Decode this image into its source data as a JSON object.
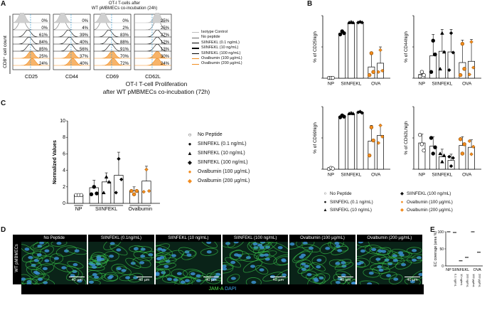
{
  "panels": {
    "A": "A",
    "B": "B",
    "C": "C",
    "D": "D",
    "E": "E"
  },
  "panel_a": {
    "title_line1": "OT-I T-cells after",
    "title_line2": "WT pMBMECs co-incubation (24h)",
    "ylabel": "CD8⁺ cell count",
    "markers": [
      "CD25",
      "CD44",
      "CD69",
      "CD62L"
    ],
    "percent_columns": [
      [
        "0%",
        "0%",
        "61%",
        "84%",
        "85%",
        "25%",
        "24%"
      ],
      [
        "0%",
        "4%",
        "39%",
        "40%",
        "56%",
        "37%",
        "40%"
      ],
      [
        "0%",
        "2%",
        "83%",
        "88%",
        "91%",
        "70%",
        "72%"
      ],
      [
        "25%",
        "25%",
        "27%",
        "12%",
        "13%",
        "30%",
        "24%"
      ]
    ],
    "legend": [
      {
        "label": "Isotype Control",
        "color": "#bdbdbd"
      },
      {
        "label": "No peptide",
        "color": "#6b6b6b"
      },
      {
        "label": "SIINFEKL (0.1 ng/mL)",
        "color": "#000000"
      },
      {
        "label": "SIINFEKL (10 ng/mL)",
        "color": "#000000"
      },
      {
        "label": "SIINFEKL (100 ng/mL)",
        "color": "#000000"
      },
      {
        "label": "Ovalbumin (100 µg/mL)",
        "color": "#f28c1e"
      },
      {
        "label": "Ovalbumin (200 µg/mL)",
        "color": "#f28c1e"
      }
    ]
  },
  "panel_c": {
    "title_line1": "OT-I T-cell Proliferation",
    "title_line2": "after WT pMBMECs co-incubation (72h)",
    "legend": [
      {
        "symbol": "○",
        "label": "No Peptide"
      },
      {
        "symbol": "●",
        "label": "SIINFEKL (0.1 ng/mL)"
      },
      {
        "symbol": "▲",
        "label": "SIINFEKL (10 ng/mL)"
      },
      {
        "symbol": "◆",
        "label": "SIINFEKL (100 ng/mL)"
      },
      {
        "symbol": "●",
        "label": "Ovalbumin (100 µg/mL)",
        "color": "#f28c1e"
      },
      {
        "symbol": "◆",
        "label": "Ovalbumin (200 µg/mL)",
        "color": "#f28c1e"
      }
    ]
  },
  "panel_b_legend": [
    {
      "symbol": "○",
      "label": "No Peptide"
    },
    {
      "symbol": "●",
      "label": "SIINFEKL (0.1 ng/mL)"
    },
    {
      "symbol": "▲",
      "label": "SIINFEKL (10 ng/mL)"
    },
    {
      "symbol": "◆",
      "label": "SIINFEKL (100 ng/mL)"
    },
    {
      "symbol": "●",
      "label": "Ovalbumin (100 µg/mL)",
      "color": "#f28c1e"
    },
    {
      "symbol": "◆",
      "label": "Ovalbumin (200 µg/mL)",
      "color": "#f28c1e"
    }
  ],
  "panel_d": {
    "side_label": "WT pMBMECs",
    "headers": [
      "No Peptide",
      "SIINFEKL (0.1ng/mL)",
      "SIINFEKL (10 ng/mL)",
      "SIINFEKL (100 ng/mL)",
      "Ovalbumin (100 µg/mL)",
      "Ovalbumin (200 µg/mL)"
    ],
    "scale": "40 µm",
    "stain_jam": "JAM-A",
    "stain_dapi": "DAPI"
  },
  "chart_data": [
    {
      "id": "C",
      "type": "bar",
      "ylabel": "Normalized Values",
      "ylim": [
        0,
        10
      ],
      "yticks": [
        0,
        2,
        4,
        6,
        8,
        10
      ],
      "groups": [
        "NP",
        "SIINFEKL",
        "Ovalbumin"
      ],
      "bars": [
        {
          "label": "No Peptide",
          "mean": 1.0,
          "err": 0,
          "points": [
            1,
            1,
            1
          ],
          "color": "#fff"
        },
        {
          "label": "SIINFEKL (0.1 ng/mL)",
          "mean": 1.9,
          "err": 0.9,
          "points": [
            1.1,
            2.0,
            1.2
          ],
          "color": "#000"
        },
        {
          "label": "SIINFEKL (10 ng/mL)",
          "mean": 2.6,
          "err": 1.1,
          "points": [
            1.3,
            3.2,
            2.6
          ],
          "color": "#000"
        },
        {
          "label": "SIINFEKL (100 ng/mL)",
          "mean": 3.4,
          "err": 2.8,
          "points": [
            1.3,
            5.4,
            2.9
          ],
          "color": "#000"
        },
        {
          "label": "Ovalbumin (100 µg/mL)",
          "mean": 1.5,
          "err": 0.5,
          "points": [
            1.5,
            1.1,
            1.5
          ],
          "color": "#f28c1e"
        },
        {
          "label": "Ovalbumin (200 µg/mL)",
          "mean": 2.7,
          "err": 1.8,
          "points": [
            1.4,
            4.1,
            1.5
          ],
          "color": "#f28c1e"
        }
      ]
    },
    {
      "id": "B1",
      "type": "bar",
      "ylabel": "% of CD25high",
      "ylim": [
        0,
        100
      ],
      "groups": [
        "NP",
        "SIINFEKL",
        "OVA"
      ],
      "bars": [
        {
          "mean": 0,
          "err": 0,
          "points": [
            0.5,
            0.5,
            0.5
          ],
          "color": "#fff"
        },
        {
          "mean": 72,
          "err": 4,
          "points": [
            70,
            75,
            72
          ],
          "color": "#000"
        },
        {
          "mean": 89,
          "err": 1,
          "points": [
            89,
            90,
            89
          ],
          "color": "#000"
        },
        {
          "mean": 89,
          "err": 1,
          "points": [
            89,
            90,
            89
          ],
          "color": "#000"
        },
        {
          "mean": 18,
          "err": 22,
          "points": [
            5,
            40,
            10
          ],
          "color": "#f28c1e"
        },
        {
          "mean": 24,
          "err": 26,
          "points": [
            10,
            45,
            12
          ],
          "color": "#f28c1e"
        }
      ]
    },
    {
      "id": "B2",
      "type": "bar",
      "ylabel": "% of CD44high",
      "ylim": [
        0,
        100
      ],
      "groups": [
        "NP",
        "SIINFEKL",
        "OVA"
      ],
      "bars": [
        {
          "mean": 6,
          "err": 4,
          "points": [
            3,
            10,
            5
          ],
          "color": "#fff"
        },
        {
          "mean": 36,
          "err": 34,
          "points": [
            10,
            60,
            38
          ],
          "color": "#000"
        },
        {
          "mean": 43,
          "err": 35,
          "points": [
            15,
            72,
            42
          ],
          "color": "#000"
        },
        {
          "mean": 42,
          "err": 36,
          "points": [
            13,
            72,
            41
          ],
          "color": "#000"
        },
        {
          "mean": 25,
          "err": 36,
          "points": [
            5,
            55,
            15
          ],
          "color": "#f28c1e"
        },
        {
          "mean": 27,
          "err": 35,
          "points": [
            6,
            58,
            17
          ],
          "color": "#f28c1e"
        }
      ]
    },
    {
      "id": "B3",
      "type": "bar",
      "ylabel": "% of CD69high",
      "ylim": [
        0,
        100
      ],
      "groups": [
        "NP",
        "SIINFEKL",
        "OVA"
      ],
      "bars": [
        {
          "mean": 1,
          "err": 1,
          "points": [
            0.5,
            2,
            1
          ],
          "color": "#fff"
        },
        {
          "mean": 84,
          "err": 3,
          "points": [
            83,
            86,
            84
          ],
          "color": "#000"
        },
        {
          "mean": 89,
          "err": 1,
          "points": [
            89,
            90,
            89
          ],
          "color": "#000"
        },
        {
          "mean": 91,
          "err": 1,
          "points": [
            91,
            92,
            90
          ],
          "color": "#000"
        },
        {
          "mean": 45,
          "err": 25,
          "points": [
            22,
            67,
            46
          ],
          "color": "#f28c1e"
        },
        {
          "mean": 54,
          "err": 16,
          "points": [
            42,
            70,
            52
          ],
          "color": "#f28c1e"
        }
      ]
    },
    {
      "id": "B4",
      "type": "bar",
      "ylabel": "% of CD62Lhigh",
      "ylim": [
        0,
        100
      ],
      "groups": [
        "NP",
        "SIINFEKL",
        "OVA"
      ],
      "bars": [
        {
          "mean": 42,
          "err": 14,
          "points": [
            55,
            40,
            30
          ],
          "color": "#fff"
        },
        {
          "mean": 37,
          "err": 15,
          "points": [
            50,
            25,
            35
          ],
          "color": "#000"
        },
        {
          "mean": 20,
          "err": 12,
          "points": [
            25,
            12,
            22
          ],
          "color": "#000"
        },
        {
          "mean": 14,
          "err": 10,
          "points": [
            20,
            5,
            18
          ],
          "color": "#000"
        },
        {
          "mean": 38,
          "err": 14,
          "points": [
            48,
            25,
            40
          ],
          "color": "#f28c1e"
        },
        {
          "mean": 35,
          "err": 12,
          "points": [
            45,
            24,
            36
          ],
          "color": "#f28c1e"
        }
      ]
    },
    {
      "id": "E",
      "type": "scatter",
      "ylabel": "EC coverage (area %)",
      "ylim": [
        0,
        100
      ],
      "yticks": [
        0,
        50,
        100
      ],
      "groups": [
        "NP",
        "SIINFEKL",
        "OVA"
      ],
      "xlabels": [
        "0.1 ng/mL",
        "10 ng/mL",
        "100 ng/mL",
        "100 µg/mL",
        "200 µg/mL"
      ],
      "values": [
        100,
        98,
        15,
        25,
        100,
        40
      ]
    }
  ]
}
